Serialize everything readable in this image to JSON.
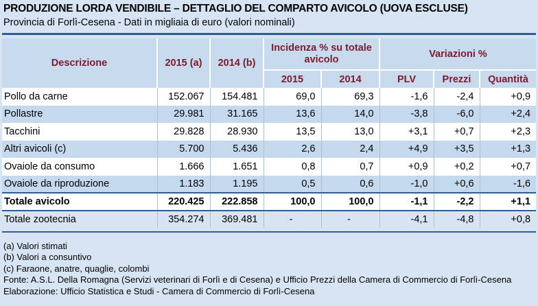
{
  "header": {
    "title": "PRODUZIONE LORDA VENDIBILE – DETTAGLIO DEL COMPARTO AVICOLO (UOVA ESCLUSE)",
    "subtitle": "Provincia di Forlì-Cesena - Dati in migliaia di euro (valori nominali)"
  },
  "columns": {
    "descrizione": "Descrizione",
    "y2015": "2015 (a)",
    "y2014": "2014 (b)",
    "incidenza": "Incidenza % su totale avicolo",
    "inc2015": "2015",
    "inc2014": "2014",
    "variazioni": "Variazioni %",
    "plv": "PLV",
    "prezzi": "Prezzi",
    "quantita": "Quantità"
  },
  "rows": [
    {
      "desc": "Pollo da carne",
      "v2015": "152.067",
      "v2014": "154.481",
      "i2015": "69,0",
      "i2014": "69,3",
      "plv": "-1,6",
      "prezzi": "-2,4",
      "quantita": "+0,9"
    },
    {
      "desc": "Pollastre",
      "v2015": "29.981",
      "v2014": "31.165",
      "i2015": "13,6",
      "i2014": "14,0",
      "plv": "-3,8",
      "prezzi": "-6,0",
      "quantita": "+2,4"
    },
    {
      "desc": "Tacchini",
      "v2015": "29.828",
      "v2014": "28.930",
      "i2015": "13,5",
      "i2014": "13,0",
      "plv": "+3,1",
      "prezzi": "+0,7",
      "quantita": "+2,3"
    },
    {
      "desc": "Altri avicoli (c)",
      "v2015": "5.700",
      "v2014": "5.436",
      "i2015": "2,6",
      "i2014": "2,4",
      "plv": "+4,9",
      "prezzi": "+3,5",
      "quantita": "+1,3"
    },
    {
      "desc": "Ovaiole da consumo",
      "v2015": "1.666",
      "v2014": "1.651",
      "i2015": "0,8",
      "i2014": "0,7",
      "plv": "+0,9",
      "prezzi": "+0,2",
      "quantita": "+0,7"
    },
    {
      "desc": "Ovaiole da riproduzione",
      "v2015": "1.183",
      "v2014": "1.195",
      "i2015": "0,5",
      "i2014": "0,6",
      "plv": "-1,0",
      "prezzi": "+0,6",
      "quantita": "-1,6"
    }
  ],
  "total": {
    "desc": "Totale avicolo",
    "v2015": "220.425",
    "v2014": "222.858",
    "i2015": "100,0",
    "i2014": "100,0",
    "plv": "-1,1",
    "prezzi": "-2,2",
    "quantita": "+1,1"
  },
  "zootecnia": {
    "desc": "Totale zootecnia",
    "v2015": "354.274",
    "v2014": "369.481",
    "i2015": "-",
    "i2014": "-",
    "plv": "-4,1",
    "prezzi": "-4,8",
    "quantita": "+0,8"
  },
  "notes": [
    "(a) Valori stimati",
    "(b) Valori a consuntivo",
    "(c) Faraone, anatre, quaglie, colombi",
    "Fonte: A.S.L. Della Romagna (Servizi veterinari di Forlì e di Cesena) e Ufficio Prezzi della Camera di Commercio di Forlì-Cesena",
    "Elaborazione: Ufficio Statistica e Studi - Camera di Commercio di Forlì-Cesena"
  ],
  "colors": {
    "header_text": "#7b1b2b",
    "rule": "#2e5d98",
    "band": "#c4d8ee",
    "background": "#d6e4f3"
  }
}
